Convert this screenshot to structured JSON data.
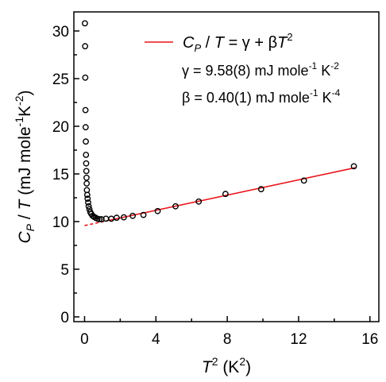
{
  "chart_data": {
    "type": "scatter",
    "title": "",
    "xlabel": {
      "sym": "T",
      "sup": "2",
      "unit": " (K",
      "unit_sup": "2",
      "tail": ")"
    },
    "ylabel": {
      "sym": "C",
      "sym_sub": "P",
      "mid": " / ",
      "sym2": "T",
      "unit": " (mJ mole",
      "unit_sup1": "-1",
      "unit_k": "K",
      "unit_sup2": "-2",
      "tail": ")"
    },
    "xlim": [
      -0.6,
      16.5
    ],
    "ylim": [
      -0.5,
      32
    ],
    "xticks": [
      0,
      4,
      8,
      12,
      16
    ],
    "yticks": [
      0,
      5,
      10,
      15,
      20,
      25,
      30
    ],
    "grid": false,
    "legend_position": "top-right",
    "colors": {
      "fit": "#e8161b",
      "points": "#000000"
    },
    "fit": {
      "intercept": 9.58,
      "slope": 0.4,
      "dashed_range": [
        0,
        1.2
      ],
      "solid_range": [
        1.2,
        15.2
      ],
      "legend_label": {
        "a": "C",
        "a_sub": "P",
        "b": " / ",
        "c": "T",
        "d": " = γ + β",
        "e": "T",
        "e_sup": "2"
      }
    },
    "annotations": [
      {
        "pre": "γ = 9.58(8) mJ mole",
        "sup1": "-1",
        "mid": " K",
        "sup2": "-2"
      },
      {
        "pre": "β = 0.40(1) mJ mole",
        "sup1": "-1",
        "mid": " K",
        "sup2": "-4"
      }
    ],
    "series": [
      {
        "x": [
          0.02,
          0.03,
          0.04,
          0.05,
          0.06,
          0.07,
          0.08,
          0.09,
          0.1,
          0.11,
          0.12,
          0.13,
          0.15,
          0.17,
          0.2,
          0.23,
          0.27,
          0.32,
          0.38,
          0.45,
          0.53,
          0.62,
          0.72,
          0.83,
          0.95,
          1.2,
          1.5,
          1.8,
          2.2,
          2.7,
          3.3,
          4.1,
          5.1,
          6.4,
          7.9,
          9.9,
          12.3,
          15.1
        ],
        "y": [
          30.8,
          28.4,
          25.1,
          21.7,
          19.9,
          18.4,
          17.0,
          16.1,
          15.3,
          14.6,
          14.0,
          13.3,
          12.8,
          12.4,
          12.0,
          11.6,
          11.3,
          11.0,
          10.8,
          10.6,
          10.5,
          10.4,
          10.3,
          10.25,
          10.25,
          10.3,
          10.3,
          10.4,
          10.45,
          10.6,
          10.7,
          11.1,
          11.6,
          12.1,
          12.9,
          13.4,
          14.3,
          15.8
        ]
      }
    ]
  }
}
